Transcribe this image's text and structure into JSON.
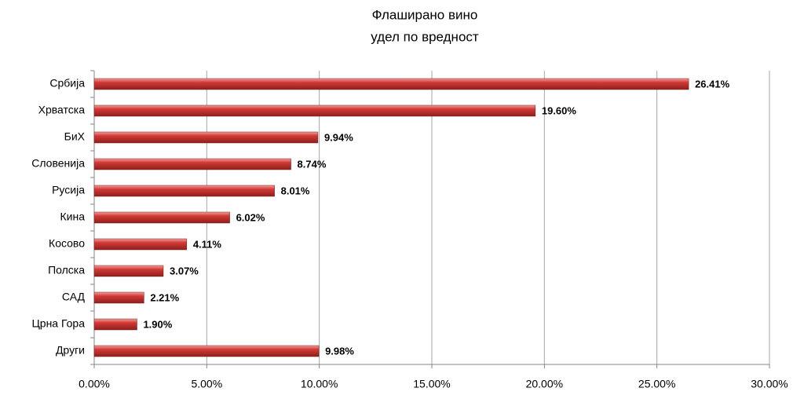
{
  "chart_data": {
    "type": "bar",
    "orientation": "horizontal",
    "title": "Флаширано вино",
    "subtitle": "удел по вредност",
    "categories": [
      "Србија",
      "Хрватска",
      "БиХ",
      "Словенија",
      "Русија",
      "Кина",
      "Косово",
      "Полска",
      "САД",
      "Црна Гора",
      "Други"
    ],
    "values": [
      26.41,
      19.6,
      9.94,
      8.74,
      8.01,
      6.02,
      4.11,
      3.07,
      2.21,
      1.9,
      9.98
    ],
    "value_labels": [
      "26.41%",
      "19.60%",
      "9.94%",
      "8.74%",
      "8.01%",
      "6.02%",
      "4.11%",
      "3.07%",
      "2.21%",
      "1.90%",
      "9.98%"
    ],
    "color": "#d23a36",
    "xlim": [
      0,
      30
    ],
    "xticks": [
      {
        "value": 0,
        "label": "0.00%"
      },
      {
        "value": 5,
        "label": "5.00%"
      },
      {
        "value": 10,
        "label": "10.00%"
      },
      {
        "value": 15,
        "label": "15.00%"
      },
      {
        "value": 20,
        "label": "20.00%"
      },
      {
        "value": 25,
        "label": "25.00%"
      },
      {
        "value": 30,
        "label": "30.00%"
      }
    ],
    "grid": true
  }
}
